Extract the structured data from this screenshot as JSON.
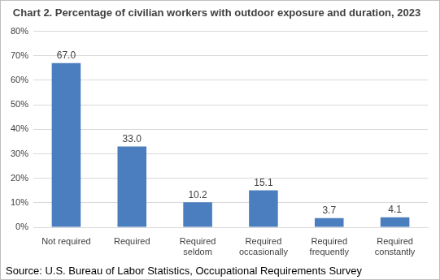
{
  "chart_data": {
    "type": "bar",
    "title": "Chart 2. Percentage of civilian workers with outdoor exposure and duration, 2023",
    "categories": [
      "Not required",
      "Required",
      "Required seldom",
      "Required occasionally",
      "Required frequently",
      "Required constantly"
    ],
    "values": [
      67.0,
      33.0,
      10.2,
      15.1,
      3.7,
      4.1
    ],
    "value_labels": [
      "67.0",
      "33.0",
      "10.2",
      "15.1",
      "3.7",
      "4.1"
    ],
    "data_labels": true,
    "color": "#4a7ebf",
    "ylim": [
      0,
      80
    ],
    "yticks": [
      {
        "value": 0,
        "label": "0%"
      },
      {
        "value": 10,
        "label": "10%"
      },
      {
        "value": 20,
        "label": "20%"
      },
      {
        "value": 30,
        "label": "30%"
      },
      {
        "value": 40,
        "label": "40%"
      },
      {
        "value": 50,
        "label": "50%"
      },
      {
        "value": 60,
        "label": "60%"
      },
      {
        "value": 70,
        "label": "70%"
      },
      {
        "value": 80,
        "label": "80%"
      }
    ],
    "grid": true,
    "annotations": [
      "Source: U.S. Bureau of Labor Statistics, Occupational Requirements Survey"
    ]
  }
}
